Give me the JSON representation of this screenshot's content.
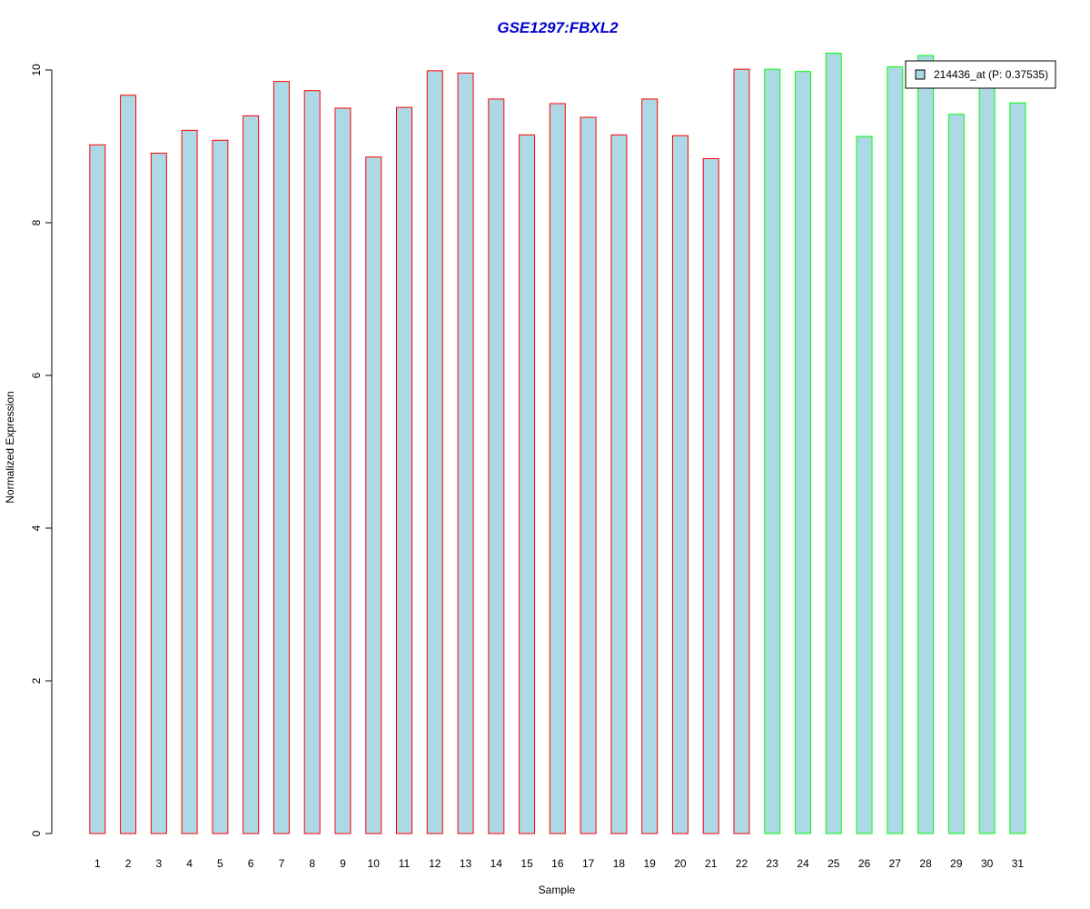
{
  "chart_data": {
    "type": "bar",
    "title": "GSE1297:FBXL2",
    "xlabel": "Sample",
    "ylabel": "Normalized Expression",
    "ylim": [
      0,
      10
    ],
    "yticks": [
      0,
      2,
      4,
      6,
      8,
      10
    ],
    "categories": [
      "1",
      "2",
      "3",
      "4",
      "5",
      "6",
      "7",
      "8",
      "9",
      "10",
      "11",
      "12",
      "13",
      "14",
      "15",
      "16",
      "17",
      "18",
      "19",
      "20",
      "21",
      "22",
      "23",
      "24",
      "25",
      "26",
      "27",
      "28",
      "29",
      "30",
      "31"
    ],
    "series": [
      {
        "name": "214436_at (P: 0.37535)",
        "values": [
          9.02,
          9.67,
          8.91,
          9.21,
          9.08,
          9.4,
          9.85,
          9.73,
          9.5,
          8.86,
          9.51,
          9.99,
          9.96,
          9.62,
          9.15,
          9.56,
          9.38,
          9.15,
          9.62,
          9.14,
          8.84,
          10.01,
          10.01,
          9.98,
          10.22,
          9.13,
          10.04,
          10.19,
          9.42,
          9.88,
          9.57
        ]
      }
    ],
    "bar_fill": "#add8e6",
    "group_outline_colors": [
      "#ff0000",
      "#ff0000",
      "#ff0000",
      "#ff0000",
      "#ff0000",
      "#ff0000",
      "#ff0000",
      "#ff0000",
      "#ff0000",
      "#ff0000",
      "#ff0000",
      "#ff0000",
      "#ff0000",
      "#ff0000",
      "#ff0000",
      "#ff0000",
      "#ff0000",
      "#ff0000",
      "#ff0000",
      "#ff0000",
      "#ff0000",
      "#ff0000",
      "#00ff00",
      "#00ff00",
      "#00ff00",
      "#00ff00",
      "#00ff00",
      "#00ff00",
      "#00ff00",
      "#00ff00",
      "#00ff00"
    ],
    "title_color": "#0000cc",
    "legend": {
      "label": "214436_at (P: 0.37535)",
      "placement": "top-right"
    },
    "grid": false
  }
}
